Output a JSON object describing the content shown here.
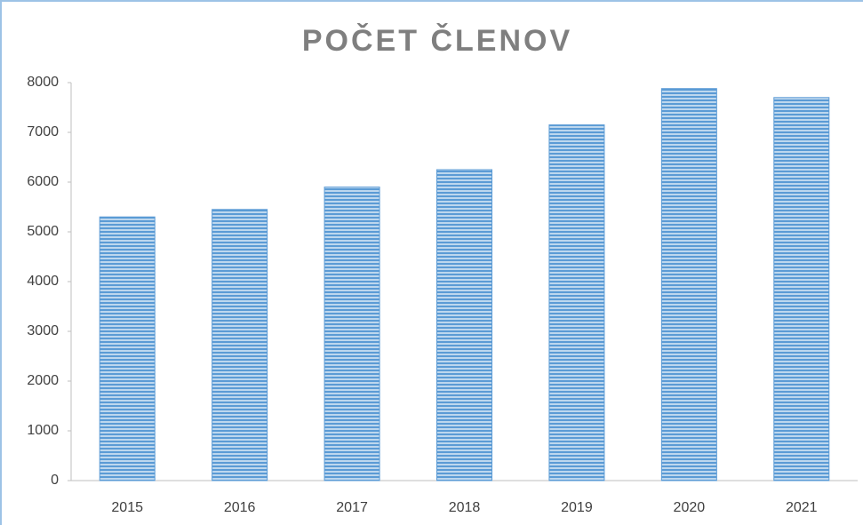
{
  "chart_data": {
    "type": "bar",
    "title": "POČET ČLENOV",
    "categories": [
      "2015",
      "2016",
      "2017",
      "2018",
      "2019",
      "2020",
      "2021"
    ],
    "values": [
      5300,
      5450,
      5900,
      6250,
      7150,
      7880,
      7700
    ],
    "color": "#5b9bd5",
    "ylim": [
      0,
      8000
    ],
    "yticks": [
      0,
      1000,
      2000,
      3000,
      4000,
      5000,
      6000,
      7000,
      8000
    ],
    "grid": false
  }
}
